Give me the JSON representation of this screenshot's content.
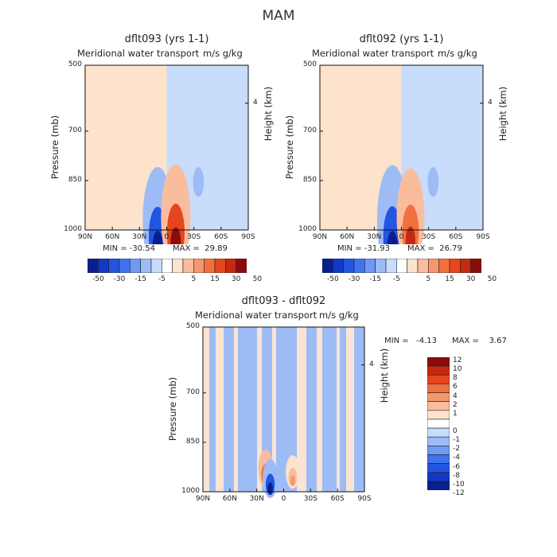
{
  "page_title": "MAM",
  "chart_data": [
    {
      "type": "heatmap",
      "title": "dflt093 (yrs 1-1)",
      "subtitle": "Meridional water transport",
      "units": "m/s g/kg",
      "xlabel": "",
      "ylabel": "Pressure (mb)",
      "y2label": "Height (km)",
      "x_ticks": [
        "90N",
        "60N",
        "30N",
        "0",
        "30S",
        "60S",
        "90S"
      ],
      "x_range": [
        90,
        -90
      ],
      "y_ticks": [
        500,
        700,
        850,
        1000
      ],
      "y_range": [
        500,
        1000
      ],
      "y2_ticks": [
        "4"
      ],
      "min_text": "MIN = -30.54",
      "max_text": "MAX =  29.89",
      "min": -30.54,
      "max": 29.89,
      "colorbar": {
        "orientation": "horizontal",
        "labels": [
          "-50",
          "-30",
          "-15",
          "-5",
          "5",
          "15",
          "30",
          "50"
        ],
        "colors": [
          "#0a1f8f",
          "#1338c4",
          "#2255e0",
          "#3f74ee",
          "#6f99f2",
          "#9dbcf6",
          "#c8dcfb",
          "#ffffff",
          "#fde2cc",
          "#f9bd9e",
          "#f59770",
          "#f2703f",
          "#e6461d",
          "#c42a10",
          "#8c0c0c"
        ]
      },
      "features": [
        {
          "lat": 22,
          "p": 880,
          "value": 8,
          "kind": "positive cell"
        },
        {
          "lat": 10,
          "p": 970,
          "value": -30.54,
          "kind": "minimum"
        },
        {
          "lat": -10,
          "p": 960,
          "value": 29.89,
          "kind": "maximum"
        },
        {
          "lat": -35,
          "p": 830,
          "value": -10,
          "kind": "negative cell"
        }
      ]
    },
    {
      "type": "heatmap",
      "title": "dflt092 (yrs 1-1)",
      "subtitle": "Meridional water transport",
      "units": "m/s g/kg",
      "xlabel": "",
      "ylabel": "Pressure (mb)",
      "y2label": "Height (km)",
      "x_ticks": [
        "90N",
        "60N",
        "30N",
        "0",
        "30S",
        "60S",
        "90S"
      ],
      "x_range": [
        90,
        -90
      ],
      "y_ticks": [
        500,
        700,
        850,
        1000
      ],
      "y_range": [
        500,
        1000
      ],
      "y2_ticks": [
        "4"
      ],
      "min_text": "MIN = -31.93",
      "max_text": "MAX =  26.79",
      "min": -31.93,
      "max": 26.79,
      "colorbar": {
        "orientation": "horizontal",
        "labels": [
          "-50",
          "-30",
          "-15",
          "-5",
          "5",
          "15",
          "30",
          "50"
        ],
        "colors": [
          "#0a1f8f",
          "#1338c4",
          "#2255e0",
          "#3f74ee",
          "#6f99f2",
          "#9dbcf6",
          "#c8dcfb",
          "#ffffff",
          "#fde2cc",
          "#f9bd9e",
          "#f59770",
          "#f2703f",
          "#e6461d",
          "#c42a10",
          "#8c0c0c"
        ]
      },
      "features": [
        {
          "lat": 22,
          "p": 880,
          "value": 8,
          "kind": "positive cell"
        },
        {
          "lat": 10,
          "p": 970,
          "value": -31.93,
          "kind": "minimum"
        },
        {
          "lat": -10,
          "p": 960,
          "value": 26.79,
          "kind": "maximum"
        },
        {
          "lat": -35,
          "p": 830,
          "value": -10,
          "kind": "negative cell"
        }
      ]
    },
    {
      "type": "heatmap",
      "title": "dflt093 - dflt092",
      "subtitle": "Meridional water transport",
      "units": "m/s g/kg",
      "xlabel": "",
      "ylabel": "Pressure (mb)",
      "y2label": "Height (km)",
      "x_ticks": [
        "90N",
        "60N",
        "30N",
        "0",
        "30S",
        "60S",
        "90S"
      ],
      "x_range": [
        90,
        -90
      ],
      "y_ticks": [
        500,
        700,
        850,
        1000
      ],
      "y_range": [
        500,
        1000
      ],
      "y2_ticks": [
        "4"
      ],
      "min_text": "MIN =   -4.13",
      "max_text": "MAX =    3.67",
      "min": -4.13,
      "max": 3.67,
      "colorbar": {
        "orientation": "vertical",
        "labels": [
          "12",
          "10",
          "8",
          "6",
          "4",
          "2",
          "1",
          "0",
          "-1",
          "-2",
          "-4",
          "-6",
          "-8",
          "-10",
          "-12"
        ],
        "colors": [
          "#8c0c0c",
          "#c42a10",
          "#e6461d",
          "#f2703f",
          "#f59770",
          "#f9bd9e",
          "#fde2cc",
          "#ffffff",
          "#c8dcfb",
          "#9dbcf6",
          "#6f99f2",
          "#3f74ee",
          "#2255e0",
          "#1338c4",
          "#0a1f8f"
        ]
      },
      "features": [
        {
          "lat": 20,
          "p": 930,
          "value": 3.67,
          "kind": "maximum"
        },
        {
          "lat": -10,
          "p": 940,
          "value": 2,
          "kind": "positive cell"
        },
        {
          "lat": 15,
          "p": 960,
          "value": -4.13,
          "kind": "minimum"
        }
      ]
    }
  ]
}
